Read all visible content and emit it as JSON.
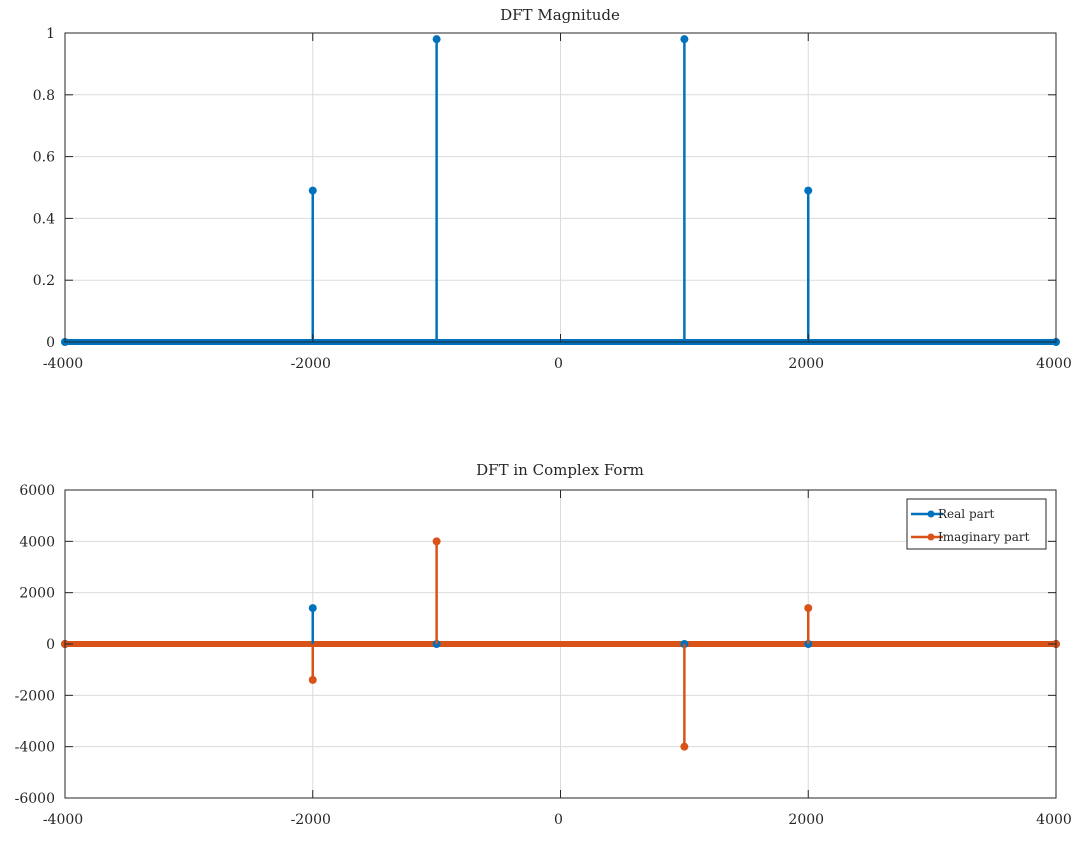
{
  "colors": {
    "series_blue": "#0072BD",
    "series_orange": "#D95319",
    "grid": "#DCDCDC",
    "axis": "#262626"
  },
  "chart_data": [
    {
      "type": "stem",
      "title": "DFT Magnitude",
      "xlabel": "",
      "ylabel": "",
      "xlim": [
        -4000,
        4000
      ],
      "ylim": [
        0,
        1
      ],
      "grid": true,
      "xticks": [
        -4000,
        -2000,
        0,
        2000,
        4000
      ],
      "xtick_labels": [
        "-4000",
        "-2000",
        "0",
        "2000",
        "4000"
      ],
      "yticks": [
        0,
        0.2,
        0.4,
        0.6,
        0.8,
        1
      ],
      "ytick_labels": [
        "0",
        "0.2",
        "0.4",
        "0.6",
        "0.8",
        "1"
      ],
      "legend": null,
      "series": [
        {
          "color": "#0072BD",
          "x": [
            -4000,
            -2000,
            -1000,
            1000,
            2000,
            4000
          ],
          "y": [
            0,
            0.49,
            0.98,
            0.98,
            0.49,
            0
          ]
        }
      ]
    },
    {
      "type": "stem",
      "title": "DFT in Complex Form",
      "xlabel": "",
      "ylabel": "",
      "xlim": [
        -4000,
        4000
      ],
      "ylim": [
        -6000,
        6000
      ],
      "grid": true,
      "xticks": [
        -4000,
        -2000,
        0,
        2000,
        4000
      ],
      "xtick_labels": [
        "-4000",
        "-2000",
        "0",
        "2000",
        "4000"
      ],
      "yticks": [
        -6000,
        -4000,
        -2000,
        0,
        2000,
        4000,
        6000
      ],
      "ytick_labels": [
        "-6000",
        "-4000",
        "-2000",
        "0",
        "2000",
        "4000",
        "6000"
      ],
      "legend": "top-right",
      "series": [
        {
          "name": "Real part",
          "color": "#0072BD",
          "x": [
            -4000,
            -2000,
            -1000,
            1000,
            2000,
            4000
          ],
          "y": [
            0,
            1400,
            0,
            0,
            0,
            0
          ]
        },
        {
          "name": "Imaginary part",
          "color": "#D95319",
          "x": [
            -4000,
            -2000,
            -1000,
            1000,
            2000,
            4000
          ],
          "y": [
            0,
            -1400,
            4000,
            -4000,
            1400,
            0
          ]
        }
      ]
    }
  ]
}
